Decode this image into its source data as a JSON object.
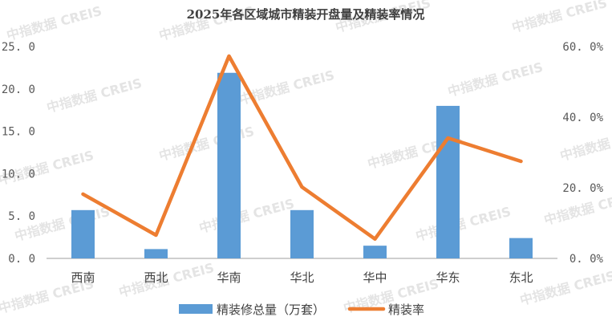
{
  "chart_data": {
    "type": "bar+line",
    "title": "2025年各区域城市精装开盘量及精装率情况",
    "categories": [
      "西南",
      "西北",
      "华南",
      "华北",
      "华中",
      "华东",
      "东北"
    ],
    "series": [
      {
        "name": "精装修总量（万套）",
        "type": "bar",
        "axis": "left",
        "color": "#5B9BD5",
        "values": [
          5.7,
          1.1,
          21.9,
          5.7,
          1.5,
          18.0,
          2.4
        ]
      },
      {
        "name": "精装率",
        "type": "line",
        "axis": "right",
        "color": "#ED7D31",
        "unit": "%",
        "values": [
          18.2,
          6.6,
          57.3,
          20.2,
          5.5,
          34.1,
          27.5
        ]
      }
    ],
    "left_axis": {
      "ylim": [
        0,
        25
      ],
      "ticks": [
        "0.0",
        "5.0",
        "10.0",
        "15.0",
        "20.0",
        "25.0"
      ]
    },
    "right_axis": {
      "ylim": [
        0,
        60
      ],
      "ticks": [
        "0.0%",
        "20.0%",
        "40.0%",
        "60.0%"
      ]
    },
    "grid": false,
    "legend_position": "bottom",
    "watermark": "中指数据 CREIS"
  }
}
